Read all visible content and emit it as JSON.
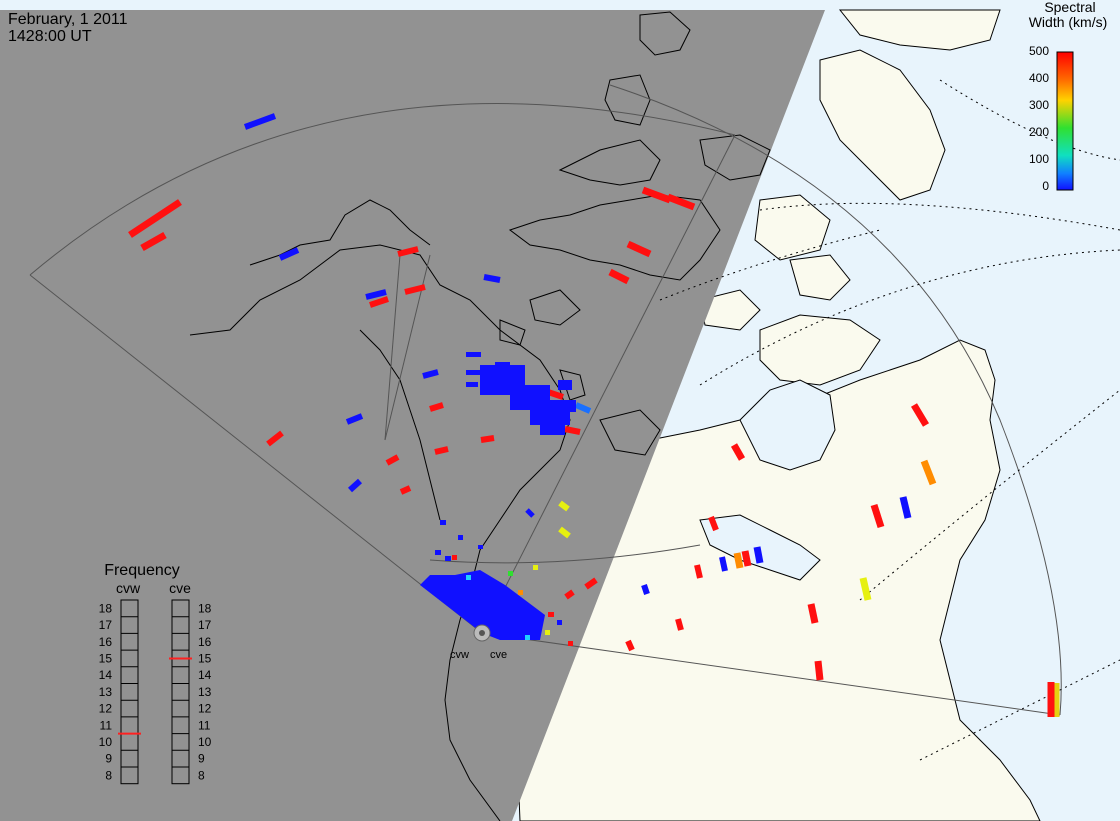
{
  "header": {
    "date": "February, 1 2011",
    "time": "1428:00 UT"
  },
  "legend": {
    "title_line1": "Spectral",
    "title_line2": "Width (km/s)",
    "ticks": [
      "500",
      "400",
      "300",
      "200",
      "100",
      "0"
    ]
  },
  "frequency_panel": {
    "title": "Frequency",
    "radars": [
      {
        "label": "cvw",
        "frequency_mhz": 10.5
      },
      {
        "label": "cve",
        "frequency_mhz": 15.0
      }
    ],
    "scale": [
      "18",
      "17",
      "16",
      "15",
      "14",
      "13",
      "12",
      "11",
      "10",
      "9",
      "8"
    ]
  },
  "radar_sites": [
    {
      "label": "cvw"
    },
    {
      "label": "cve"
    }
  ],
  "colors": {
    "night": "#929292",
    "land_day": "#fafaee",
    "ocean_day": "#e8f4fc",
    "bar": "#ff2020"
  }
}
